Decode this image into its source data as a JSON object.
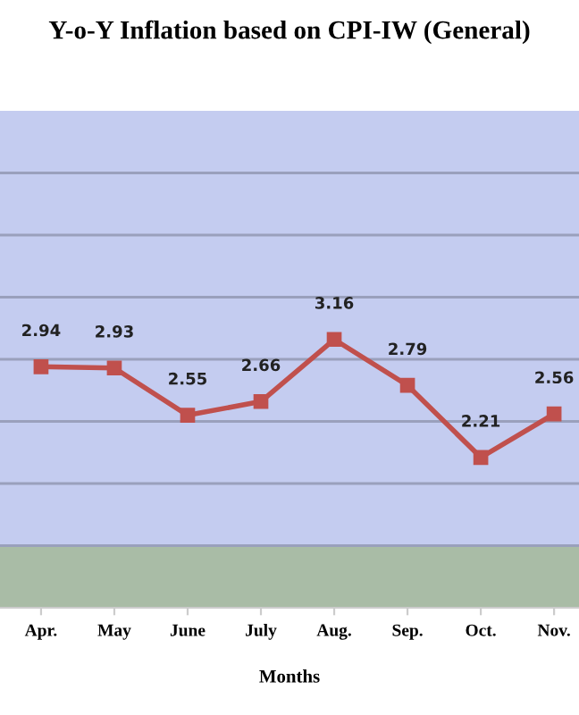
{
  "chart_data": {
    "type": "line",
    "title": "Y-o-Y Inflation based on CPI-IW (General)",
    "xlabel": "Months",
    "categories": [
      "Apr.",
      "May",
      "June",
      "July",
      "Aug.",
      "Sep.",
      "Oct.",
      "Nov."
    ],
    "series": [
      {
        "color": "#c0504d",
        "values": [
          2.94,
          2.93,
          2.55,
          2.66,
          3.16,
          2.79,
          2.21,
          2.56
        ]
      }
    ],
    "ylim": [
      1,
      5
    ],
    "yticks": [
      {
        "value": 1.5,
        "label": null
      },
      {
        "value": 2,
        "label": null
      },
      {
        "value": 2.5,
        "label": null
      },
      {
        "value": 3,
        "label": null
      },
      {
        "value": 3.5,
        "label": null
      },
      {
        "value": 4,
        "label": null
      },
      {
        "value": 4.5,
        "label": null
      }
    ],
    "grid": "y",
    "marker": "square",
    "line_style": "solid",
    "data_labels": true,
    "tick_labels": "x",
    "legend": false
  }
}
